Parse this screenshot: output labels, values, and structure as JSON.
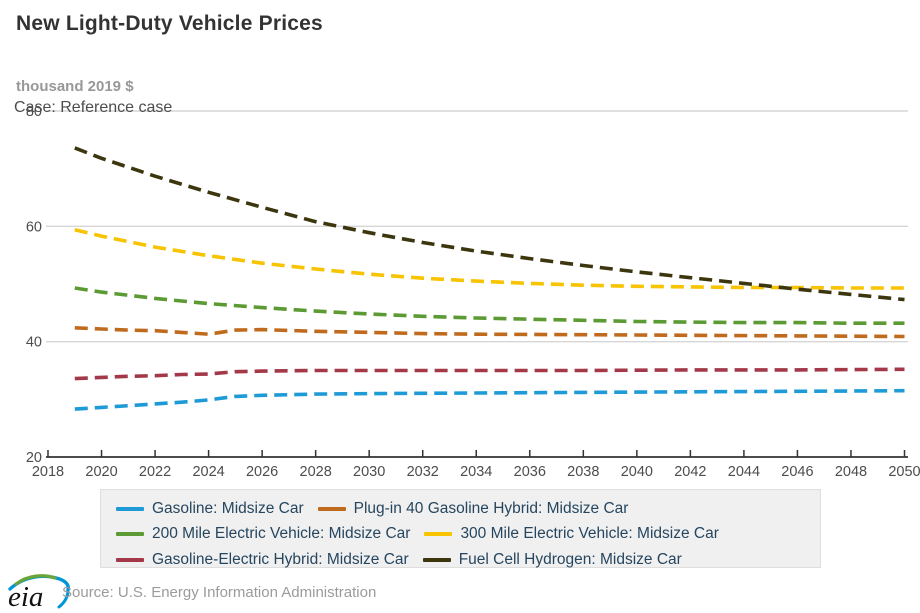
{
  "header": {
    "title": "New Light-Duty Vehicle Prices",
    "unit_label": "thousand 2019 $",
    "case_label": "Case: Reference case"
  },
  "footer": {
    "source": "Source: U.S. Energy Information Administration",
    "logo_text": "eia"
  },
  "colors": {
    "gridline": "#d6d6d6",
    "axis_line": "#333333",
    "tick_label": "#4d4d4d",
    "legend_background": "#f0f0f0",
    "legend_border": "#dedede",
    "legend_text": "#26465f"
  },
  "chart_data": {
    "type": "line",
    "title": "New Light-Duty Vehicle Prices",
    "xlabel": "",
    "ylabel": "thousand 2019 $",
    "annotation": "Case: Reference case",
    "line_style": "dashed",
    "grid": "horizontal-only",
    "legend_position": "bottom",
    "xlim": [
      2018,
      2050
    ],
    "ylim": [
      20,
      80
    ],
    "x_ticks": [
      2018,
      2020,
      2022,
      2024,
      2026,
      2028,
      2030,
      2032,
      2034,
      2036,
      2038,
      2040,
      2042,
      2044,
      2046,
      2048,
      2050
    ],
    "y_ticks": [
      20,
      40,
      60,
      80
    ],
    "series": [
      {
        "name": "Gasoline: Midsize Car",
        "color": "#1E9BD7",
        "x": [
          2019,
          2020,
          2021,
          2022,
          2023,
          2024,
          2025,
          2026,
          2028,
          2030,
          2034,
          2038,
          2042,
          2046,
          2050
        ],
        "values": [
          28.3,
          28.6,
          28.9,
          29.2,
          29.5,
          29.9,
          30.5,
          30.7,
          30.9,
          31.0,
          31.1,
          31.2,
          31.3,
          31.4,
          31.5
        ]
      },
      {
        "name": "Plug-in 40 Gasoline Hybrid: Midsize Car",
        "color": "#C06A1E",
        "x": [
          2019,
          2020,
          2021,
          2022,
          2023,
          2024,
          2025,
          2026,
          2028,
          2030,
          2032,
          2034,
          2038,
          2042,
          2046,
          2050
        ],
        "values": [
          42.4,
          42.2,
          42.0,
          41.9,
          41.6,
          41.3,
          42.0,
          42.1,
          41.8,
          41.6,
          41.4,
          41.3,
          41.2,
          41.1,
          41.0,
          40.9
        ]
      },
      {
        "name": "200 Mile Electric Vehicle: Midsize Car",
        "color": "#5C9A33",
        "x": [
          2019,
          2020,
          2022,
          2024,
          2026,
          2028,
          2030,
          2032,
          2034,
          2036,
          2038,
          2040,
          2042,
          2044,
          2046,
          2048,
          2050
        ],
        "values": [
          49.3,
          48.6,
          47.5,
          46.6,
          45.9,
          45.3,
          44.8,
          44.4,
          44.1,
          43.9,
          43.7,
          43.5,
          43.4,
          43.3,
          43.3,
          43.2,
          43.2
        ]
      },
      {
        "name": "300 Mile Electric Vehicle: Midsize Car",
        "color": "#F8C300",
        "x": [
          2019,
          2020,
          2022,
          2024,
          2026,
          2028,
          2030,
          2032,
          2034,
          2036,
          2038,
          2040,
          2042,
          2044,
          2046,
          2048,
          2050
        ],
        "values": [
          59.4,
          58.3,
          56.4,
          54.9,
          53.6,
          52.6,
          51.7,
          51.0,
          50.5,
          50.1,
          49.8,
          49.6,
          49.5,
          49.4,
          49.4,
          49.3,
          49.3
        ]
      },
      {
        "name": "Gasoline-Electric Hybrid: Midsize Car",
        "color": "#A23848",
        "x": [
          2019,
          2020,
          2021,
          2022,
          2023,
          2024,
          2025,
          2026,
          2028,
          2030,
          2034,
          2038,
          2042,
          2046,
          2050
        ],
        "values": [
          33.6,
          33.8,
          34.0,
          34.1,
          34.3,
          34.4,
          34.8,
          34.9,
          35.0,
          35.0,
          35.0,
          35.0,
          35.1,
          35.1,
          35.2
        ]
      },
      {
        "name": "Fuel Cell Hydrogen: Midsize Car",
        "color": "#3C360F",
        "x": [
          2019,
          2020,
          2022,
          2024,
          2026,
          2028,
          2030,
          2032,
          2034,
          2036,
          2038,
          2040,
          2042,
          2044,
          2046,
          2048,
          2050
        ],
        "values": [
          73.6,
          71.8,
          68.7,
          65.9,
          63.3,
          60.8,
          58.9,
          57.2,
          55.7,
          54.4,
          53.2,
          52.1,
          51.1,
          50.1,
          49.1,
          48.2,
          47.3
        ]
      }
    ],
    "legend_rows": [
      [
        0,
        1
      ],
      [
        2,
        3
      ],
      [
        4,
        5
      ]
    ]
  }
}
